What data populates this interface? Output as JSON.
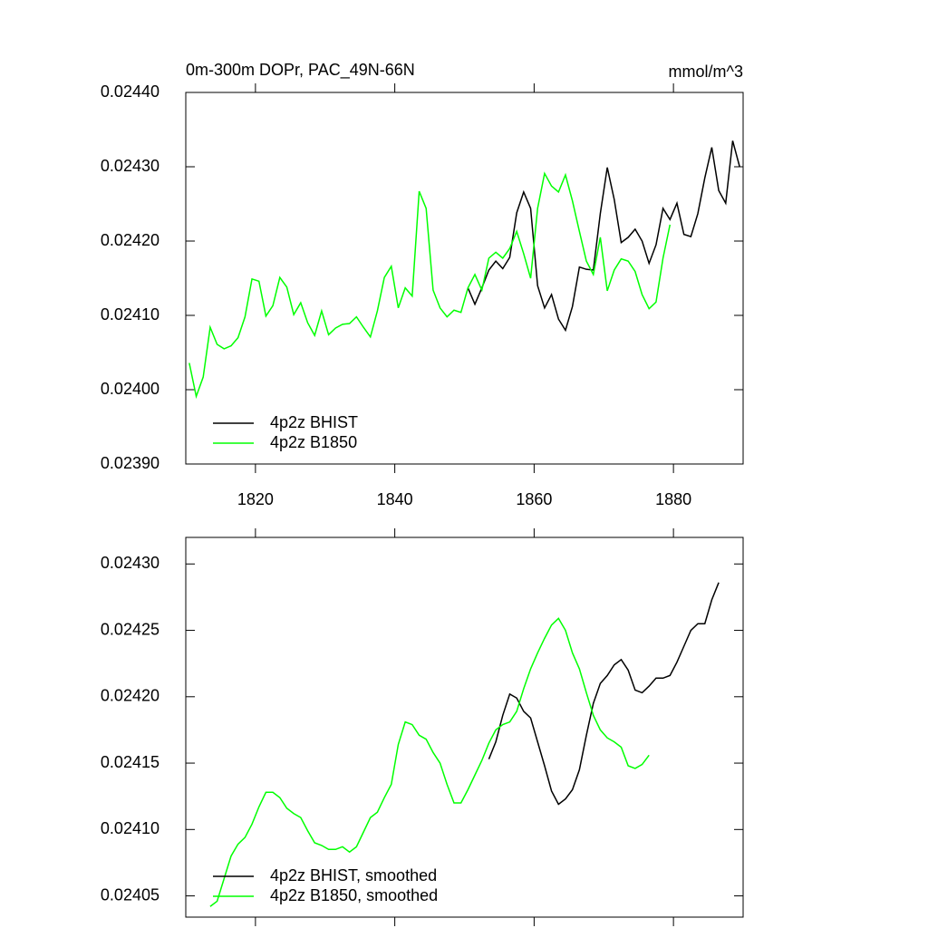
{
  "chart_data": [
    {
      "type": "line",
      "title": "0m-300m DOPr, PAC_49N-66N",
      "units": "mmol/m^3",
      "legend": "lower left",
      "x": [
        1810.5,
        1811.5,
        1812.5,
        1813.5,
        1814.5,
        1815.5,
        1816.5,
        1817.5,
        1818.5,
        1819.5,
        1820.5,
        1821.5,
        1822.5,
        1823.5,
        1824.5,
        1825.5,
        1826.5,
        1827.5,
        1828.5,
        1829.5,
        1830.5,
        1831.5,
        1832.5,
        1833.5,
        1834.5,
        1835.5,
        1836.5,
        1837.5,
        1838.5,
        1839.5,
        1840.5,
        1841.5,
        1842.5,
        1843.5,
        1844.5,
        1845.5,
        1846.5,
        1847.5,
        1848.5,
        1849.5,
        1850.5,
        1851.5,
        1852.5,
        1853.5,
        1854.5,
        1855.5,
        1856.5,
        1857.5,
        1858.5,
        1859.5,
        1860.5,
        1861.5,
        1862.5,
        1863.5,
        1864.5,
        1865.5,
        1866.5,
        1867.5,
        1868.5,
        1869.5,
        1870.5,
        1871.5,
        1872.5,
        1873.5,
        1874.5,
        1875.5,
        1876.5,
        1877.5,
        1878.5,
        1879.5,
        1880.5,
        1881.5,
        1882.5,
        1883.5,
        1884.5,
        1885.5,
        1886.5,
        1887.5,
        1888.5,
        1889.5
      ],
      "series": [
        {
          "name": "4p2z BHIST",
          "color": "#000000",
          "values": [
            null,
            null,
            null,
            null,
            null,
            null,
            null,
            null,
            null,
            null,
            null,
            null,
            null,
            null,
            null,
            null,
            null,
            null,
            null,
            null,
            null,
            null,
            null,
            null,
            null,
            null,
            null,
            null,
            null,
            null,
            null,
            null,
            null,
            null,
            null,
            null,
            null,
            null,
            null,
            null,
            0.024137,
            0.024115,
            0.024137,
            0.024161,
            0.024173,
            0.024163,
            0.024178,
            0.024238,
            0.024266,
            0.024244,
            0.02414,
            0.02411,
            0.024128,
            0.024095,
            0.02408,
            0.024112,
            0.024165,
            0.024162,
            0.024161,
            0.024237,
            0.024299,
            0.024256,
            0.024198,
            0.024205,
            0.024216,
            0.0242,
            0.02417,
            0.024195,
            0.024244,
            0.024229,
            0.024251,
            0.024209,
            0.024206,
            0.024237,
            0.024285,
            0.024326,
            0.024268,
            0.024251,
            0.024335,
            0.0243
          ]
        },
        {
          "name": "4p2z B1850",
          "color": "#00ff00",
          "values": [
            0.024036,
            0.023991,
            0.024017,
            0.024084,
            0.024061,
            0.024055,
            0.024059,
            0.02407,
            0.024098,
            0.024149,
            0.024146,
            0.024099,
            0.024113,
            0.024151,
            0.024138,
            0.024101,
            0.024117,
            0.02409,
            0.024073,
            0.024106,
            0.024074,
            0.024083,
            0.024088,
            0.024089,
            0.024098,
            0.024084,
            0.024071,
            0.024106,
            0.024151,
            0.024166,
            0.02411,
            0.024137,
            0.024126,
            0.024267,
            0.024244,
            0.024134,
            0.02411,
            0.024098,
            0.024107,
            0.024104,
            0.024137,
            0.024155,
            0.024134,
            0.024177,
            0.024185,
            0.024177,
            0.02419,
            0.024213,
            0.024183,
            0.02415,
            0.024244,
            0.024291,
            0.024274,
            0.024266,
            0.024289,
            0.024254,
            0.024213,
            0.024173,
            0.024155,
            0.024205,
            0.024133,
            0.024161,
            0.024176,
            0.024173,
            0.024159,
            0.024128,
            0.024109,
            0.024118,
            0.024177,
            0.024222,
            null,
            null,
            null,
            null,
            null,
            null,
            null,
            null,
            null,
            null
          ]
        }
      ],
      "xlim": [
        1810,
        1890
      ],
      "xticks": [
        1820,
        1840,
        1860,
        1880
      ],
      "ylim": [
        0.0239,
        0.0244
      ],
      "yticks": [
        {
          "value": 0.0239,
          "label": "0.02390"
        },
        {
          "value": 0.024,
          "label": "0.02400"
        },
        {
          "value": 0.0241,
          "label": "0.02410"
        },
        {
          "value": 0.0242,
          "label": "0.02420"
        },
        {
          "value": 0.0243,
          "label": "0.02430"
        },
        {
          "value": 0.0244,
          "label": "0.02440"
        }
      ]
    },
    {
      "type": "line",
      "legend": "lower left",
      "x": [
        1813.5,
        1814.5,
        1815.5,
        1816.5,
        1817.5,
        1818.5,
        1819.5,
        1820.5,
        1821.5,
        1822.5,
        1823.5,
        1824.5,
        1825.5,
        1826.5,
        1827.5,
        1828.5,
        1829.5,
        1830.5,
        1831.5,
        1832.5,
        1833.5,
        1834.5,
        1835.5,
        1836.5,
        1837.5,
        1838.5,
        1839.5,
        1840.5,
        1841.5,
        1842.5,
        1843.5,
        1844.5,
        1845.5,
        1846.5,
        1847.5,
        1848.5,
        1849.5,
        1850.5,
        1851.5,
        1852.5,
        1853.5,
        1854.5,
        1855.5,
        1856.5,
        1857.5,
        1858.5,
        1859.5,
        1860.5,
        1861.5,
        1862.5,
        1863.5,
        1864.5,
        1865.5,
        1866.5,
        1867.5,
        1868.5,
        1869.5,
        1870.5,
        1871.5,
        1872.5,
        1873.5,
        1874.5,
        1875.5,
        1876.5,
        1877.5,
        1878.5,
        1879.5,
        1880.5,
        1881.5,
        1882.5,
        1883.5,
        1884.5,
        1885.5,
        1886.5
      ],
      "series": [
        {
          "name": "4p2z BHIST, smoothed",
          "color": "#000000",
          "values": [
            null,
            null,
            null,
            null,
            null,
            null,
            null,
            null,
            null,
            null,
            null,
            null,
            null,
            null,
            null,
            null,
            null,
            null,
            null,
            null,
            null,
            null,
            null,
            null,
            null,
            null,
            null,
            null,
            null,
            null,
            null,
            null,
            null,
            null,
            null,
            null,
            null,
            null,
            null,
            null,
            0.024153,
            0.024166,
            0.024186,
            0.024202,
            0.024199,
            0.024189,
            0.024184,
            0.024166,
            0.024148,
            0.024129,
            0.024119,
            0.024123,
            0.02413,
            0.024145,
            0.024171,
            0.024195,
            0.02421,
            0.024216,
            0.024224,
            0.024228,
            0.02422,
            0.024205,
            0.024203,
            0.024208,
            0.024214,
            0.024214,
            0.024216,
            0.024226,
            0.024238,
            0.02425,
            0.024255,
            0.024255,
            0.024273,
            0.024286
          ]
        },
        {
          "name": "4p2z B1850, smoothed",
          "color": "#00ff00",
          "values": [
            0.024042,
            0.024046,
            0.024063,
            0.02408,
            0.024089,
            0.024094,
            0.024104,
            0.024117,
            0.024128,
            0.024128,
            0.024124,
            0.024116,
            0.024112,
            0.024109,
            0.024099,
            0.02409,
            0.024088,
            0.024085,
            0.024085,
            0.024087,
            0.024083,
            0.024087,
            0.024098,
            0.024109,
            0.024113,
            0.024124,
            0.024134,
            0.024164,
            0.024181,
            0.024179,
            0.024171,
            0.024168,
            0.024158,
            0.02415,
            0.024134,
            0.02412,
            0.02412,
            0.02413,
            0.024141,
            0.024152,
            0.024165,
            0.024175,
            0.024179,
            0.024181,
            0.024189,
            0.024206,
            0.024221,
            0.024233,
            0.024244,
            0.024254,
            0.024259,
            0.02425,
            0.024233,
            0.024221,
            0.024203,
            0.024186,
            0.024175,
            0.024169,
            0.024166,
            0.024162,
            0.024148,
            0.024146,
            0.024149,
            0.024156,
            null,
            null,
            null,
            null,
            null,
            null,
            null,
            null,
            null,
            null
          ]
        }
      ],
      "xlim": [
        1810,
        1890
      ],
      "xticks": [
        1820,
        1840,
        1860,
        1880
      ],
      "ylim": [
        0.024034,
        0.02432
      ],
      "yticks": [
        {
          "value": 0.02405,
          "label": "0.02405"
        },
        {
          "value": 0.0241,
          "label": "0.02410"
        },
        {
          "value": 0.02415,
          "label": "0.02415"
        },
        {
          "value": 0.0242,
          "label": "0.02420"
        },
        {
          "value": 0.02425,
          "label": "0.02425"
        },
        {
          "value": 0.0243,
          "label": "0.02430"
        }
      ]
    }
  ]
}
